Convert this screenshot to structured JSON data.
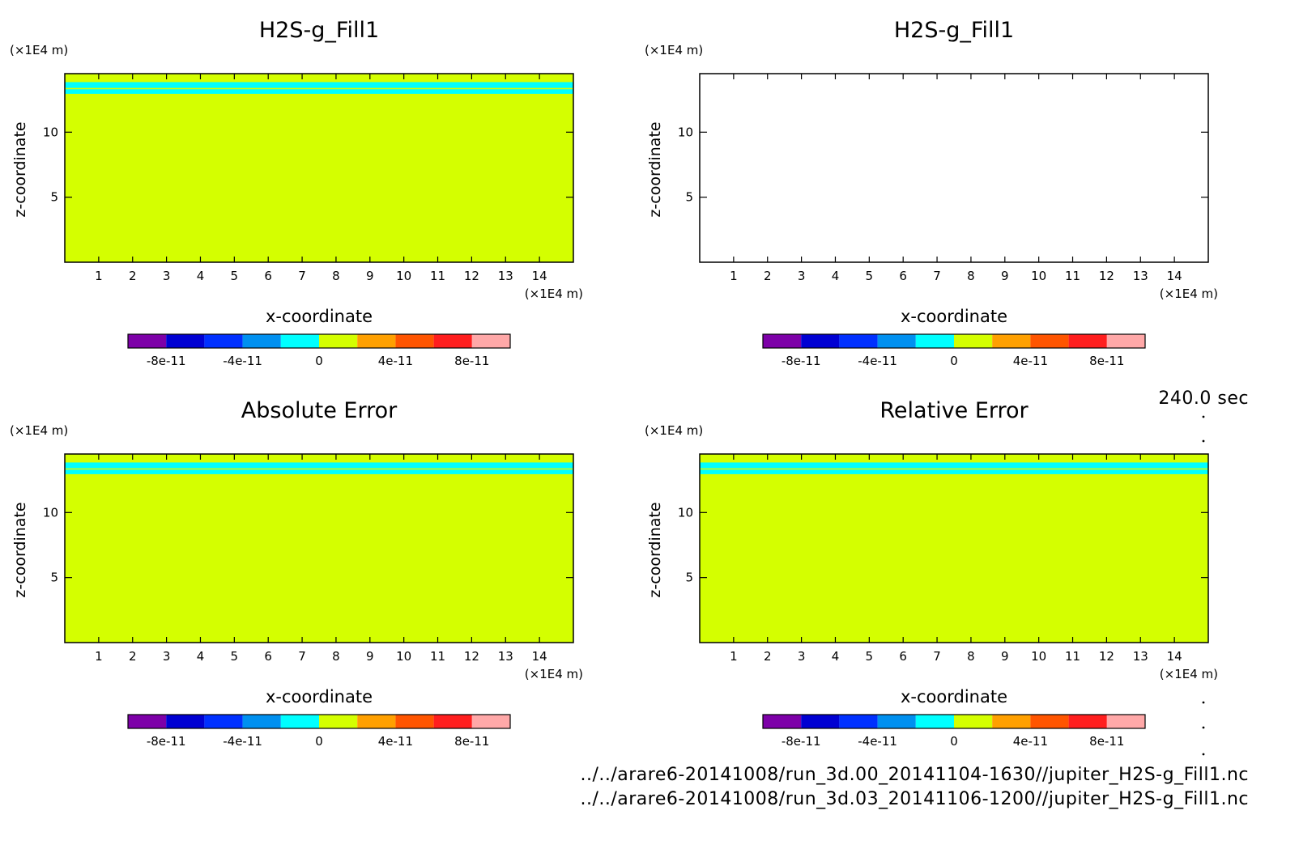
{
  "timestamp": "240.0 sec",
  "footer": {
    "file_a": "../../arare6-20141008/run_3d.00_20141104-1630//jupiter_H2S-g_Fill1.nc",
    "file_b": "../../arare6-20141008/run_3d.03_20141106-1200//jupiter_H2S-g_Fill1.nc"
  },
  "colorbar": {
    "colors": [
      "#7d00a8",
      "#0000d2",
      "#0030ff",
      "#0090f0",
      "#00ffff",
      "#d4ff00",
      "#ffa000",
      "#ff5500",
      "#ff1e1e",
      "#ffa8a8"
    ],
    "tick_labels": [
      "-8e-11",
      "-4e-11",
      "0",
      "4e-11",
      "8e-11"
    ]
  },
  "chart_data": [
    {
      "type": "heatmap",
      "title": "H2S-g_Fill1",
      "xlabel": "x-coordinate",
      "ylabel": "z-coordinate",
      "x_unit": "(×1E4 m)",
      "y_unit": "(×1E4 m)",
      "xlim": [
        0,
        15
      ],
      "ylim": [
        0,
        14.5
      ],
      "x_ticks": [
        1,
        2,
        3,
        4,
        5,
        6,
        7,
        8,
        9,
        10,
        11,
        12,
        13,
        14
      ],
      "y_ticks": [
        5,
        10
      ],
      "fill_color": "#d4ff00",
      "bands": [
        {
          "z_from": 13.4,
          "z_to": 13.85,
          "color": "#00ffff"
        },
        {
          "z_from": 12.95,
          "z_to": 13.3,
          "color": "#00ffff"
        }
      ]
    },
    {
      "type": "heatmap",
      "title": "H2S-g_Fill1",
      "xlabel": "x-coordinate",
      "ylabel": "z-coordinate",
      "x_unit": "(×1E4 m)",
      "y_unit": "(×1E4 m)",
      "xlim": [
        0,
        15
      ],
      "ylim": [
        0,
        14.5
      ],
      "x_ticks": [
        1,
        2,
        3,
        4,
        5,
        6,
        7,
        8,
        9,
        10,
        11,
        12,
        13,
        14
      ],
      "y_ticks": [
        5,
        10
      ],
      "fill_color": "#ffffff",
      "bands": []
    },
    {
      "type": "heatmap",
      "title": "Absolute Error",
      "xlabel": "x-coordinate",
      "ylabel": "z-coordinate",
      "x_unit": "(×1E4 m)",
      "y_unit": "(×1E4 m)",
      "xlim": [
        0,
        15
      ],
      "ylim": [
        0,
        14.5
      ],
      "x_ticks": [
        1,
        2,
        3,
        4,
        5,
        6,
        7,
        8,
        9,
        10,
        11,
        12,
        13,
        14
      ],
      "y_ticks": [
        5,
        10
      ],
      "fill_color": "#d4ff00",
      "bands": [
        {
          "z_from": 13.4,
          "z_to": 13.85,
          "color": "#00ffff"
        },
        {
          "z_from": 12.95,
          "z_to": 13.3,
          "color": "#00ffff"
        }
      ]
    },
    {
      "type": "heatmap",
      "title": "Relative Error",
      "xlabel": "x-coordinate",
      "ylabel": "z-coordinate",
      "x_unit": "(×1E4 m)",
      "y_unit": "(×1E4 m)",
      "xlim": [
        0,
        15
      ],
      "ylim": [
        0,
        14.5
      ],
      "x_ticks": [
        1,
        2,
        3,
        4,
        5,
        6,
        7,
        8,
        9,
        10,
        11,
        12,
        13,
        14
      ],
      "y_ticks": [
        5,
        10
      ],
      "fill_color": "#d4ff00",
      "bands": [
        {
          "z_from": 13.4,
          "z_to": 13.85,
          "color": "#00ffff"
        },
        {
          "z_from": 12.95,
          "z_to": 13.3,
          "color": "#00ffff"
        }
      ]
    }
  ]
}
